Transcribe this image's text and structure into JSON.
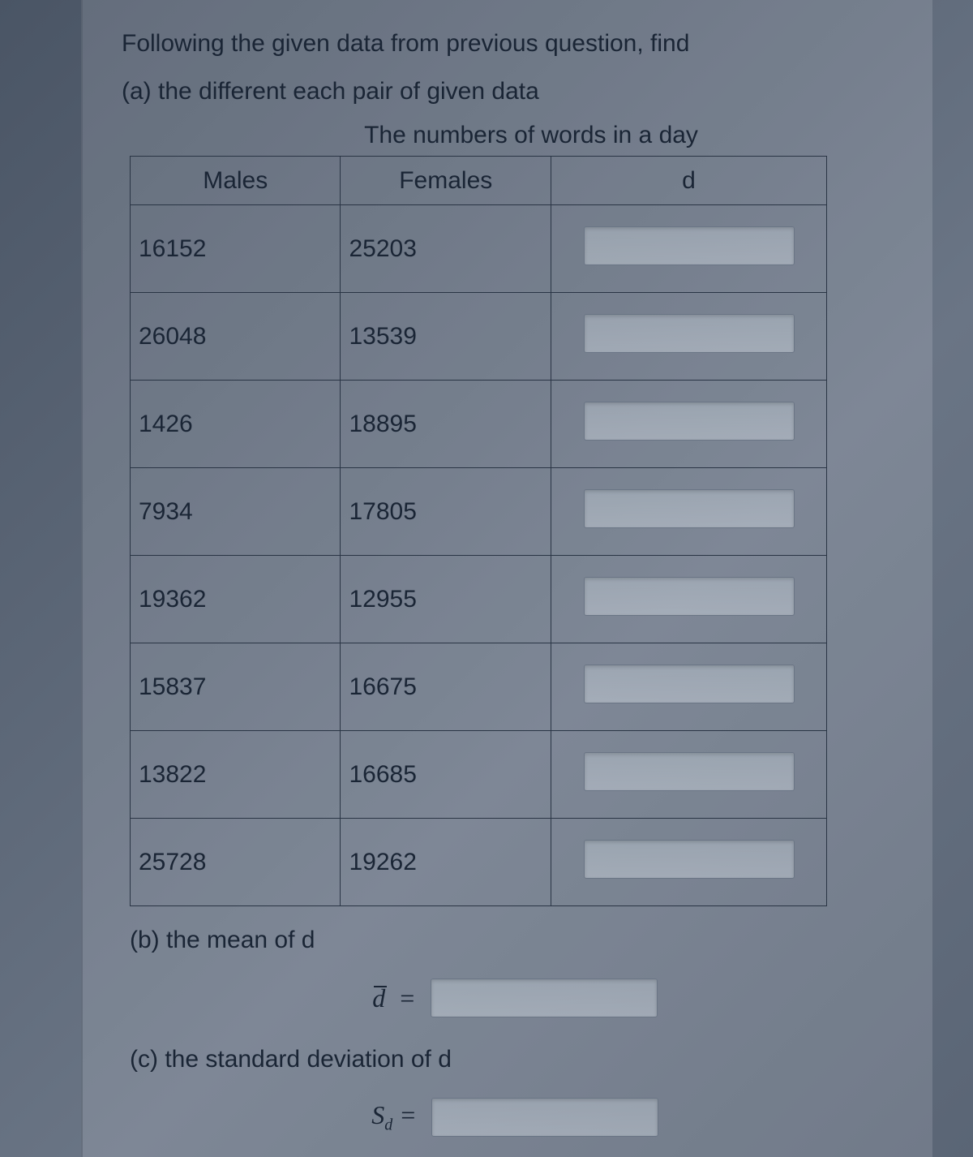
{
  "question_intro": "Following the given data from previous question, find",
  "part_a_label": "(a) the different each pair of given data",
  "table_title": "The numbers of words in a day",
  "columns": [
    "Males",
    "Females",
    "d"
  ],
  "rows": [
    {
      "males": "16152",
      "females": "25203"
    },
    {
      "males": "26048",
      "females": "13539"
    },
    {
      "males": "1426",
      "females": "18895"
    },
    {
      "males": "7934",
      "females": "17805"
    },
    {
      "males": "19362",
      "females": "12955"
    },
    {
      "males": "15837",
      "females": "16675"
    },
    {
      "males": "13822",
      "females": "16685"
    },
    {
      "males": "25728",
      "females": "19262"
    }
  ],
  "part_b_label": "(b) the mean of d",
  "mean_formula": "d̄ =",
  "part_c_label": "(c) the standard deviation of d",
  "sd_formula_main": "S",
  "sd_formula_sub": "d",
  "sd_formula_eq": " =",
  "colors": {
    "text": "#1a2535",
    "border": "#2a3545",
    "input_bg_top": "rgba(180,190,200,0.55)",
    "input_bg_bottom": "rgba(210,218,226,0.45)",
    "input_border": "#6a7585"
  },
  "fontsize": {
    "body": 30,
    "formula": 32
  }
}
